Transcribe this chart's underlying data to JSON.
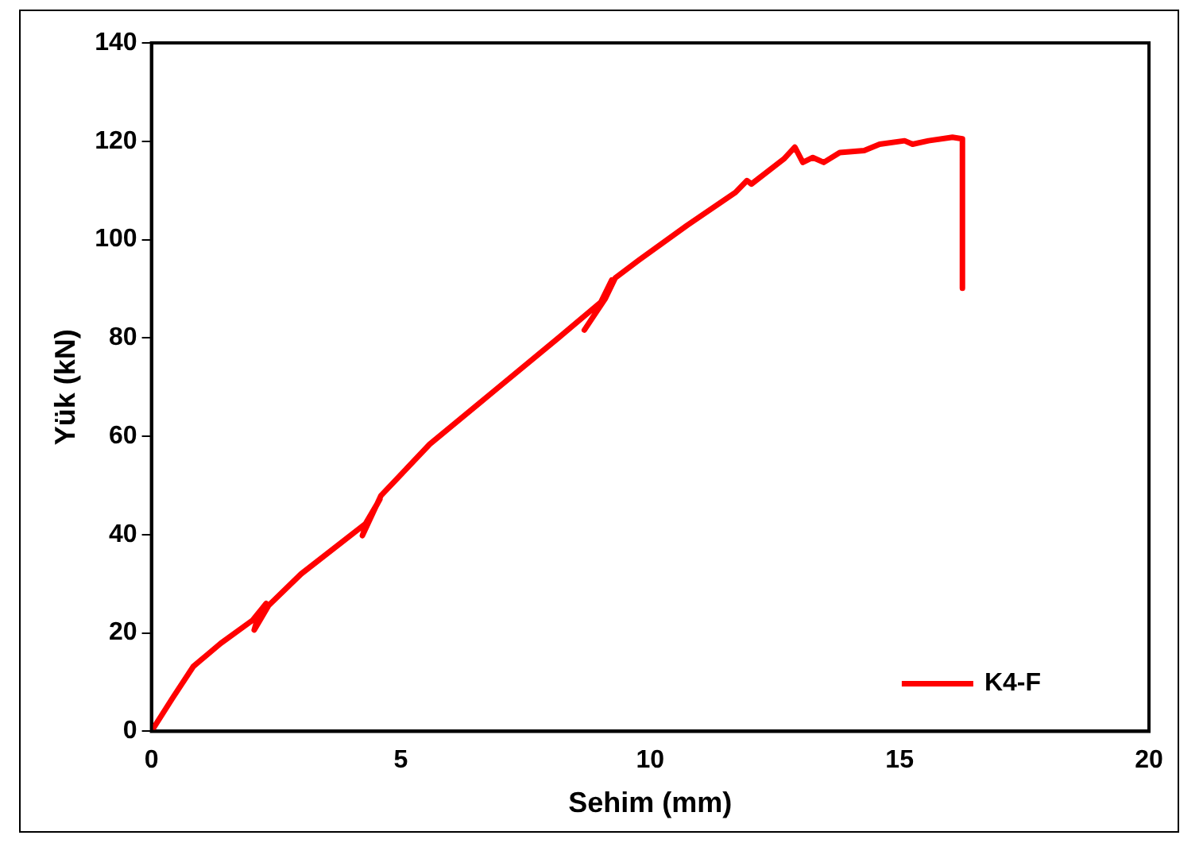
{
  "chart_data": {
    "type": "line",
    "xlabel": "Sehim (mm)",
    "ylabel": "Yük (kN)",
    "xlim": [
      0,
      20
    ],
    "xticks": [
      0,
      5,
      10,
      15,
      20
    ],
    "ylim": [
      0,
      140
    ],
    "yticks": [
      0,
      20,
      40,
      60,
      80,
      100,
      120,
      140
    ],
    "grid": false,
    "legend": "bottom right",
    "marker": "none",
    "line_style": "solid",
    "series": [
      {
        "name": "K4-F",
        "color": "#ff0000",
        "x": [
          0,
          0.42,
          0.84,
          1.39,
          2.03,
          2.3,
          2.1,
          2.06,
          2.35,
          3.0,
          4.29,
          4.58,
          4.3,
          4.23,
          4.6,
          5.58,
          6.87,
          8.16,
          9.06,
          9.23,
          8.9,
          8.68,
          9.1,
          9.3,
          9.77,
          10.74,
          11.71,
          11.94,
          12.03,
          12.68,
          12.9,
          13.06,
          13.26,
          13.48,
          13.8,
          14.29,
          14.6,
          15.1,
          15.26,
          15.58,
          16.06,
          16.26,
          16.26
        ],
        "values": [
          0,
          6.7,
          13.2,
          17.9,
          22.6,
          26,
          22,
          20.6,
          25.6,
          32,
          42.2,
          47.2,
          42,
          39.8,
          47.9,
          58.4,
          69.2,
          80,
          87.7,
          91.8,
          85,
          81.6,
          88,
          92.2,
          95.8,
          102.9,
          109.6,
          112,
          111.3,
          116.4,
          118.8,
          115.7,
          116.7,
          115.7,
          117.7,
          118.1,
          119.4,
          120.1,
          119.4,
          120.1,
          120.8,
          120.5,
          90.1
        ]
      }
    ]
  }
}
